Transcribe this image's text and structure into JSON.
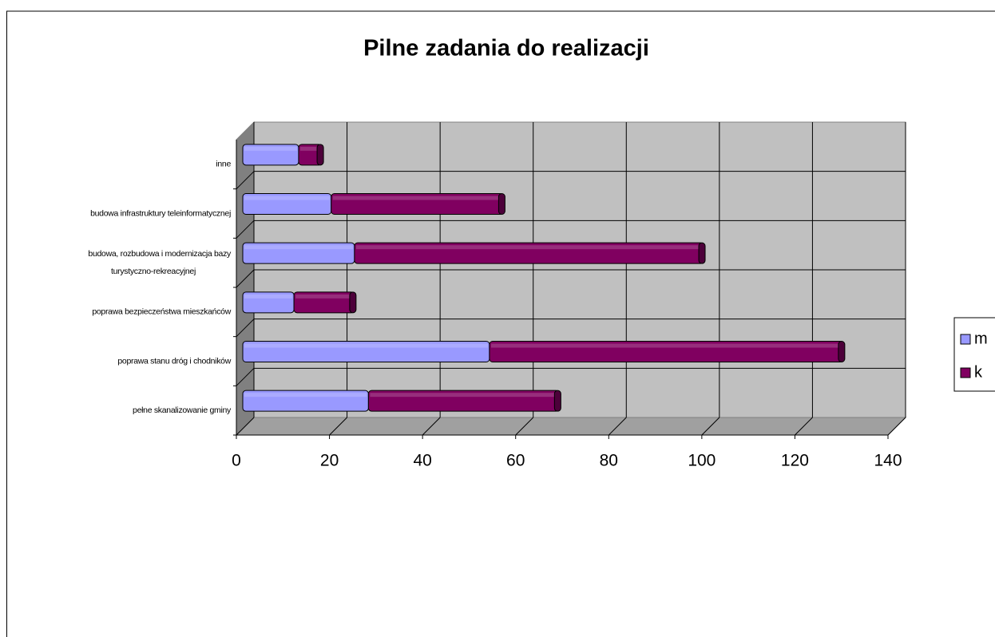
{
  "chart_data": {
    "type": "bar",
    "orientation": "horizontal",
    "stacked": true,
    "three_d": true,
    "title": "Pilne zadania do realizacji",
    "categories": [
      "pełne skanalizowanie gminy",
      "poprawa stanu dróg i chodników",
      "poprawa bezpieczeństwa mieszkańców",
      "budowa, rozbudowa i modernizacja bazy turystyczno-rekreacyjnej",
      "budowa infrastruktury teleinformatycznej",
      "inne"
    ],
    "series": [
      {
        "name": "m",
        "color": "#9999ff",
        "values": [
          27,
          53,
          11,
          24,
          19,
          12
        ]
      },
      {
        "name": "k",
        "color": "#800060",
        "values": [
          41,
          76,
          13,
          75,
          37,
          5
        ]
      }
    ],
    "xlim": [
      0,
      140
    ],
    "xticks": [
      0,
      20,
      40,
      60,
      80,
      100,
      120,
      140
    ],
    "grid": true,
    "legend": "right"
  }
}
